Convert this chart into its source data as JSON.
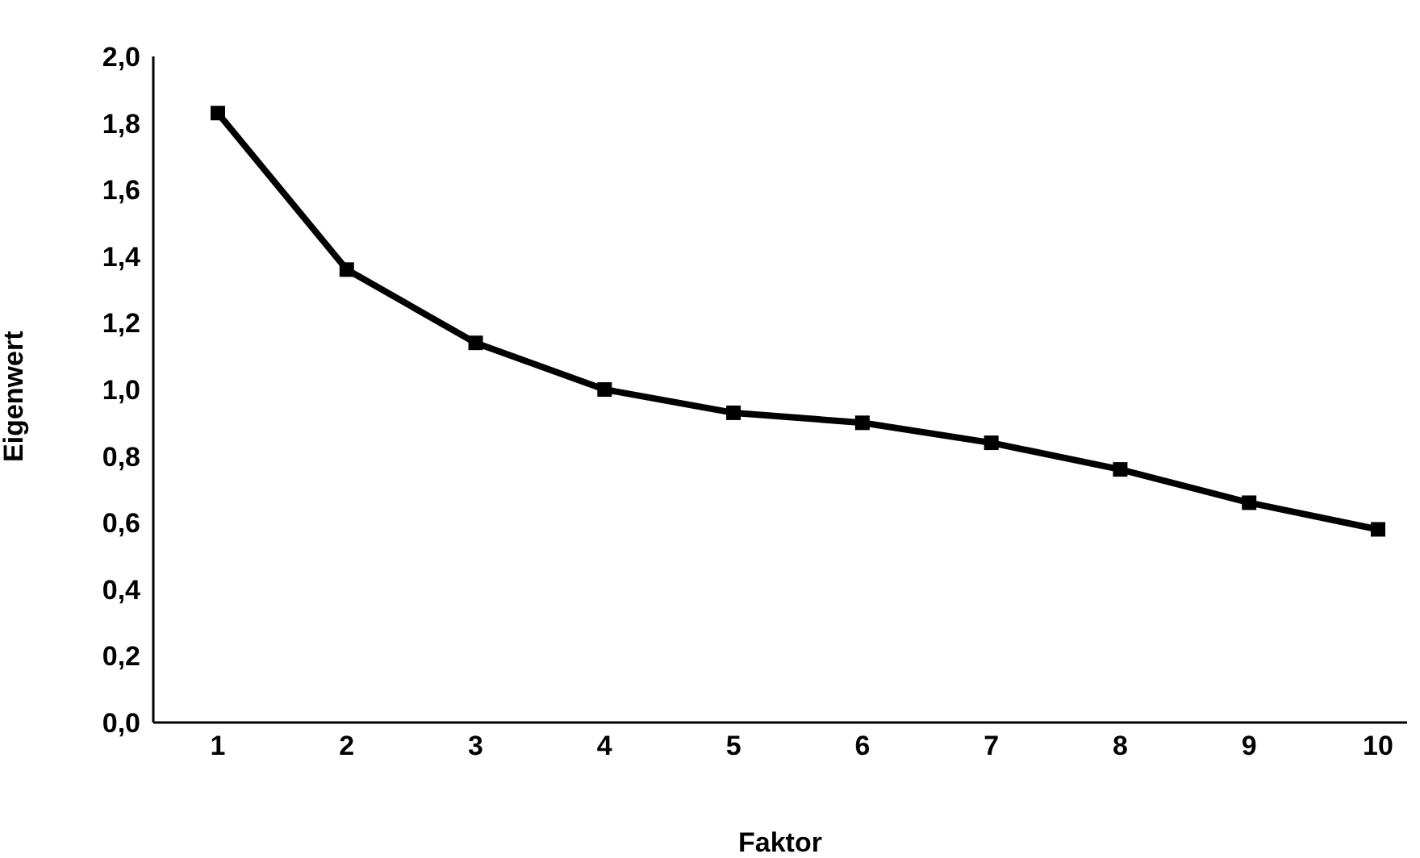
{
  "chart_data": {
    "type": "line",
    "xlabel": "Faktor",
    "ylabel": "Eigenwert",
    "categories": [
      "1",
      "2",
      "3",
      "4",
      "5",
      "6",
      "7",
      "8",
      "9",
      "10"
    ],
    "series": [
      {
        "color": "#000000",
        "values": [
          1.83,
          1.36,
          1.14,
          1.0,
          0.93,
          0.9,
          0.84,
          0.76,
          0.66,
          0.58
        ]
      }
    ],
    "ylim": [
      0,
      2
    ],
    "yticks": [
      {
        "value": 0,
        "label": "0,0"
      },
      {
        "value": 0.2,
        "label": "0,2"
      },
      {
        "value": 0.4,
        "label": "0,4"
      },
      {
        "value": 0.6,
        "label": "0,6"
      },
      {
        "value": 0.8,
        "label": "0,8"
      },
      {
        "value": 1,
        "label": "1,0"
      },
      {
        "value": 1.2,
        "label": "1,2"
      },
      {
        "value": 1.4,
        "label": "1,4"
      },
      {
        "value": 1.6,
        "label": "1,6"
      },
      {
        "value": 1.8,
        "label": "1,8"
      },
      {
        "value": 2,
        "label": "2,0"
      }
    ],
    "grid": false,
    "legend": false,
    "marker": "square",
    "line_style": "solid"
  }
}
